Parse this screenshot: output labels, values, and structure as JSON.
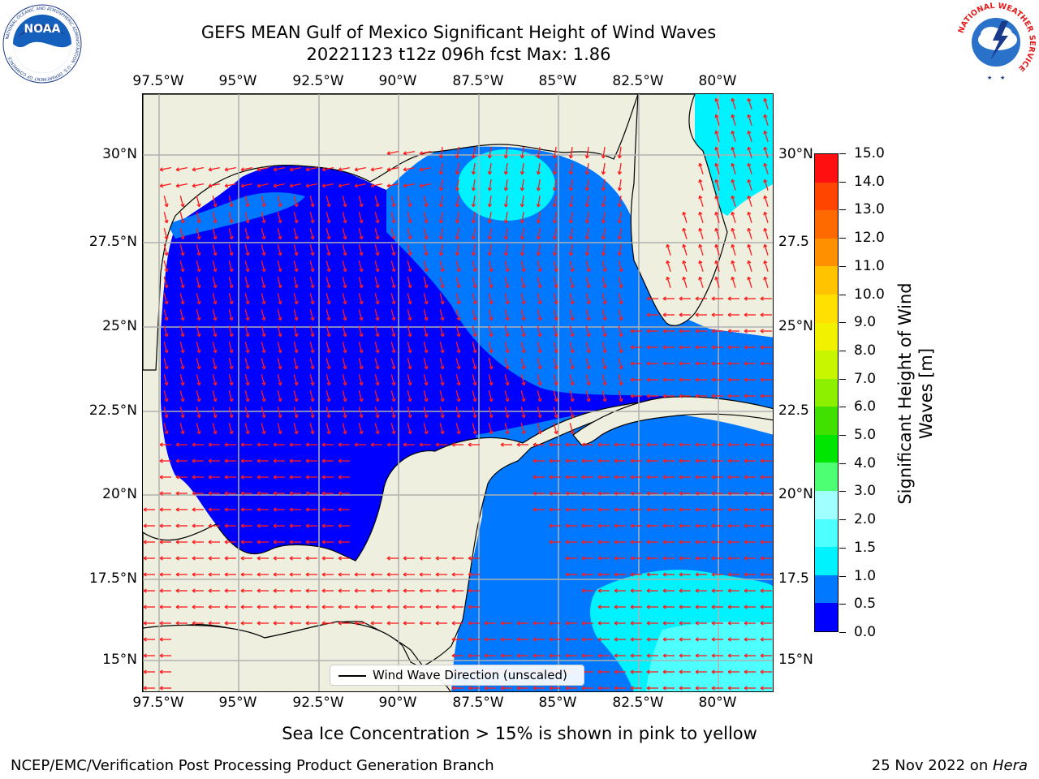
{
  "title_line1": "GEFS MEAN Gulf of Mexico Significant Height of Wind Waves",
  "title_line2": "20221123 t12z 096h fcst   Max: 1.86",
  "lon_labels": [
    "97.5°W",
    "95°W",
    "92.5°W",
    "90°W",
    "87.5°W",
    "85°W",
    "82.5°W",
    "80°W"
  ],
  "lat_labels_left": [
    "30°N",
    "27.5°N",
    "25°N",
    "22.5°N",
    "20°N",
    "17.5°N",
    "15°N"
  ],
  "lat_labels_right": [
    "30°N",
    "27.5",
    "25°N",
    "22.5",
    "20°N",
    "17.5",
    "15°N"
  ],
  "legend_label": "Wind Wave Direction (unscaled)",
  "colorbar": {
    "title_line1": "Significant Height of Wind",
    "title_line2": "Waves [m]",
    "ticks": [
      "0.0",
      "0.5",
      "1.0",
      "1.5",
      "2.0",
      "3.0",
      "4.0",
      "5.0",
      "6.0",
      "7.0",
      "8.0",
      "9.0",
      "10.0",
      "11.0",
      "12.0",
      "13.0",
      "14.0",
      "15.0"
    ],
    "colors": [
      "#0000ff",
      "#0078ff",
      "#00f2ff",
      "#4dffff",
      "#a0ffff",
      "#4dff73",
      "#00e600",
      "#40e000",
      "#8cf000",
      "#c8f500",
      "#f2f200",
      "#ffe000",
      "#ffc300",
      "#ff9100",
      "#ff6a00",
      "#ff4500",
      "#ff0f0f"
    ]
  },
  "colors": {
    "land": "#efefdf",
    "ocean_low": "#0000ff",
    "ocean_mid": "#0078ff",
    "ocean_high": "#00f2ff",
    "ocean_peak": "#4dffff",
    "arrow": "#ff1a1a",
    "grid": "#b0b0b0"
  },
  "note": "Sea Ice Concentration > 15% is shown in pink to yellow",
  "credit": "NCEP/EMC/Verification Post Processing Product Generation Branch",
  "date_prefix": "25 Nov 2022 on ",
  "date_machine": "Hera",
  "logos": {
    "noaa": {
      "text": "NOAA",
      "ring_text": "NATIONAL OCEANIC AND ATMOSPHERIC ADMINISTRATION · U.S. DEPARTMENT OF COMMERCE"
    },
    "nws": {
      "ring_text": "NATIONAL WEATHER SERVICE"
    }
  }
}
